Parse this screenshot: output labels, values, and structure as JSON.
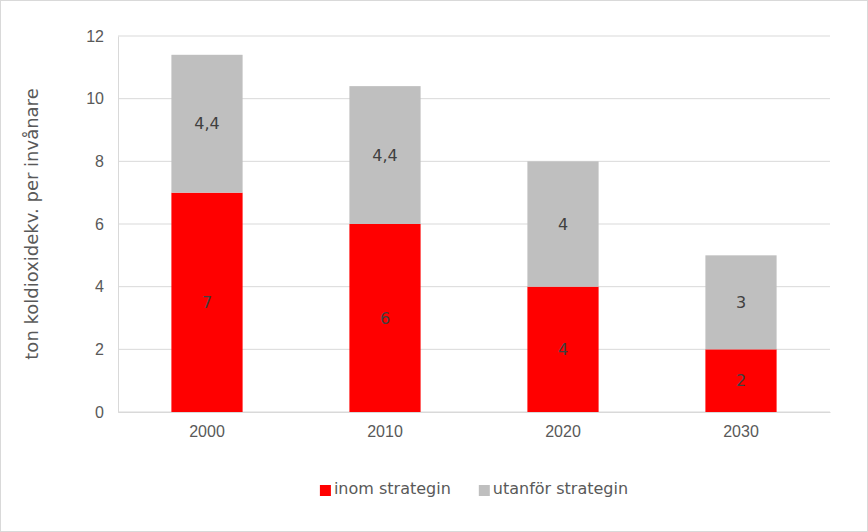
{
  "chart_data": {
    "type": "bar",
    "stacked": true,
    "data_labels": true,
    "grid": true,
    "legend": "bottom",
    "y_label": "ton koldioxidekv. per invånare",
    "categories": [
      "2000",
      "2010",
      "2020",
      "2030"
    ],
    "ylim": [
      0,
      12
    ],
    "yticks": [
      0,
      2,
      4,
      6,
      8,
      10,
      12
    ],
    "series": [
      {
        "name": "inom strategin",
        "color": "#ff0000",
        "values": [
          7,
          6,
          4,
          2
        ]
      },
      {
        "name": "utanför strategin",
        "color": "#bfbfbf",
        "values": [
          4.4,
          4.4,
          4,
          3
        ],
        "value_labels": [
          "4,4",
          "4,4",
          "4",
          "3"
        ]
      }
    ]
  }
}
